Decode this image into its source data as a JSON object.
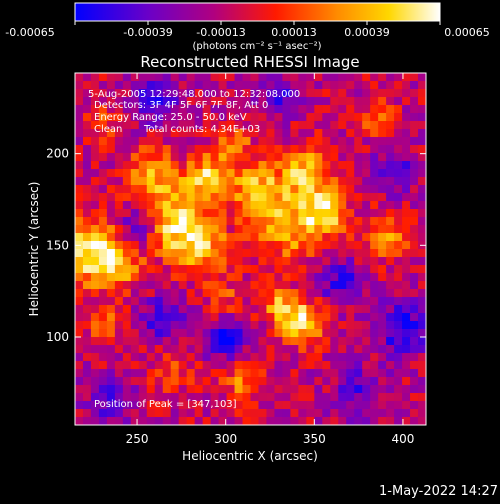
{
  "colorbar": {
    "ticks": [
      "-0.00065",
      "-0.00039",
      "-0.00013",
      "0.00013",
      "0.00039",
      "0.00065"
    ],
    "units_label": "(photons cm⁻² s⁻¹ asec⁻²)"
  },
  "chart_data": {
    "type": "heatmap",
    "title": "Reconstructed RHESSI Image",
    "xlabel": "Heliocentric X (arcsec)",
    "ylabel": "Heliocentric Y (arcsec)",
    "xlim": [
      215,
      413
    ],
    "ylim": [
      52,
      244
    ],
    "xticks": [
      250,
      300,
      350,
      400
    ],
    "yticks": [
      100,
      150,
      200
    ],
    "colorbar_range": [
      -0.00065,
      0.00065
    ],
    "colormap_stops": [
      "#0000ff",
      "#6a00c8",
      "#b00080",
      "#ff1a00",
      "#ff8c00",
      "#ffd700",
      "#ffffff"
    ],
    "peak": [
      347,
      103
    ],
    "hotspots": [
      {
        "x": 220,
        "y": 148,
        "value": 0.00062,
        "r": 18
      },
      {
        "x": 238,
        "y": 140,
        "value": 0.0005,
        "r": 14
      },
      {
        "x": 233,
        "y": 108,
        "value": 0.00035,
        "r": 10
      },
      {
        "x": 258,
        "y": 190,
        "value": 0.00045,
        "r": 14
      },
      {
        "x": 270,
        "y": 165,
        "value": 0.00055,
        "r": 18
      },
      {
        "x": 290,
        "y": 187,
        "value": 0.0006,
        "r": 12
      },
      {
        "x": 285,
        "y": 150,
        "value": 0.0005,
        "r": 16
      },
      {
        "x": 305,
        "y": 205,
        "value": 0.0004,
        "r": 10
      },
      {
        "x": 318,
        "y": 180,
        "value": 0.00055,
        "r": 14
      },
      {
        "x": 335,
        "y": 160,
        "value": 0.0005,
        "r": 18
      },
      {
        "x": 345,
        "y": 190,
        "value": 0.00055,
        "r": 14
      },
      {
        "x": 356,
        "y": 168,
        "value": 0.0006,
        "r": 12
      },
      {
        "x": 342,
        "y": 108,
        "value": 0.00065,
        "r": 12
      },
      {
        "x": 330,
        "y": 118,
        "value": 0.0004,
        "r": 10
      },
      {
        "x": 390,
        "y": 155,
        "value": 0.0004,
        "r": 14
      },
      {
        "x": 310,
        "y": 75,
        "value": 0.00035,
        "r": 12
      },
      {
        "x": 270,
        "y": 80,
        "value": 0.00025,
        "r": 12
      },
      {
        "x": 385,
        "y": 220,
        "value": 0.0003,
        "r": 10
      },
      {
        "x": 230,
        "y": 215,
        "value": 0.00025,
        "r": 10
      },
      {
        "x": 300,
        "y": 120,
        "value": 0.00025,
        "r": 12
      },
      {
        "x": 260,
        "y": 230,
        "value": -0.0004,
        "r": 14
      },
      {
        "x": 250,
        "y": 160,
        "value": -0.00045,
        "r": 10
      },
      {
        "x": 300,
        "y": 100,
        "value": -0.00045,
        "r": 12
      },
      {
        "x": 265,
        "y": 110,
        "value": -0.0004,
        "r": 12
      },
      {
        "x": 365,
        "y": 130,
        "value": -0.0004,
        "r": 12
      },
      {
        "x": 400,
        "y": 105,
        "value": -0.0005,
        "r": 14
      },
      {
        "x": 395,
        "y": 190,
        "value": -0.00035,
        "r": 12
      },
      {
        "x": 235,
        "y": 65,
        "value": -0.00035,
        "r": 12
      },
      {
        "x": 375,
        "y": 70,
        "value": -0.0003,
        "r": 14
      },
      {
        "x": 330,
        "y": 232,
        "value": -0.0003,
        "r": 12
      }
    ]
  },
  "annotations": {
    "time_range": "5-Aug-2005 12:29:48.000 to 12:32:08.000",
    "detectors": "Detectors: 3F 4F 5F 6F 7F 8F, Att 0",
    "energy": "Energy Range: 25.0 - 50.0 keV",
    "method": "Clean",
    "counts": "Total counts: 4.34E+03",
    "peak": "Position of Peak = [347,103]"
  },
  "footer": {
    "timestamp": "1-May-2022 14:27"
  }
}
